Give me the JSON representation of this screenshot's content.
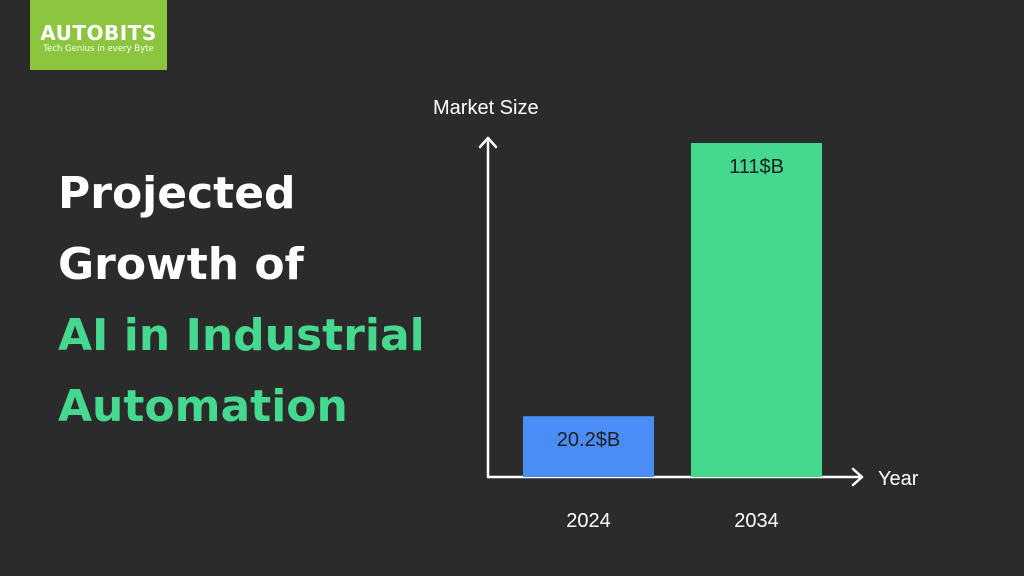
{
  "logo": {
    "name": "AUTOBITS",
    "tagline": "Tech Genius in every Byte"
  },
  "headline": {
    "line1": "Projected",
    "line2": "Growth of",
    "line3": "AI in Industrial",
    "line4": "Automation"
  },
  "colors": {
    "background": "#2b2b2b",
    "accent_green": "#45d98f",
    "bar_blue": "#4a8df6",
    "bar_green": "#45d98f",
    "logo_green": "#8cc63f"
  },
  "chart_data": {
    "type": "bar",
    "title": "",
    "xlabel": "Year",
    "ylabel": "Market Size",
    "categories": [
      "2024",
      "2034"
    ],
    "values": [
      20.2,
      111
    ],
    "data_labels": [
      "20.2$B",
      "111$B"
    ],
    "bar_colors": [
      "#4a8df6",
      "#45d98f"
    ],
    "ylim": [
      0,
      111
    ],
    "grid": false,
    "legend": "none"
  }
}
